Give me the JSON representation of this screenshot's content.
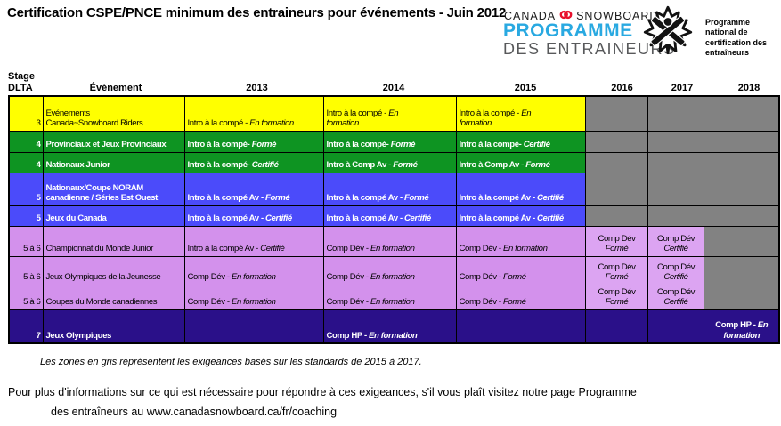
{
  "title": "Certification CSPE/PNCE minimum des entraineurs pour événements - Juin 2012",
  "logo": {
    "brand_left": "CANADA",
    "brand_right": "SNOWBOARD",
    "programme": "PROGRAMME",
    "des_entraineurs": "DES ENTRAINEURS",
    "cac_lines": [
      "Programme",
      "national de",
      "certification des",
      "entraîneurs"
    ]
  },
  "colors": {
    "yellow": "#FFFF00",
    "green": "#0E9422",
    "blue": "#4B4BFA",
    "violet": "#D391EC",
    "violet_light": "#DCA4F2",
    "navy": "#2A1089",
    "gray": "#828282",
    "brand_blue": "#29A9E1",
    "brand_gray": "#58595B",
    "brand_red": "#E8112D"
  },
  "table": {
    "headers": {
      "stage": "Stage",
      "dlta": "DLTA",
      "event": "Événement",
      "years": [
        "2013",
        "2014",
        "2015",
        "2016",
        "2017",
        "2018"
      ]
    },
    "rows": [
      {
        "color": "yellow",
        "stage": "3",
        "event": [
          "Événements",
          "Canada~Snowboard Riders"
        ],
        "cells": [
          {
            "parts": [
              {
                "t": "Intro à la compé - "
              },
              {
                "t": "En formation",
                "it": true
              }
            ]
          },
          {
            "parts": [
              {
                "t": "Intro à la compé - "
              },
              {
                "t": "En",
                "it": true
              },
              {
                "br": true
              },
              {
                "t": "formation",
                "it": true
              }
            ]
          },
          {
            "parts": [
              {
                "t": "Intro à la compé - "
              },
              {
                "t": "En",
                "it": true
              },
              {
                "br": true
              },
              {
                "t": "formation",
                "it": true
              }
            ]
          },
          {
            "bg": "gray"
          },
          {
            "bg": "gray"
          },
          {
            "bg": "gray"
          }
        ]
      },
      {
        "color": "green",
        "stage": "4",
        "event": [
          "Provinciaux et Jeux Provinciaux"
        ],
        "cells": [
          {
            "parts": [
              {
                "t": "Intro à la compé- "
              },
              {
                "t": "Formé",
                "it": true
              }
            ]
          },
          {
            "parts": [
              {
                "t": "Intro à la compé- "
              },
              {
                "t": "Formé",
                "it": true
              }
            ]
          },
          {
            "parts": [
              {
                "t": "Intro à la compé- "
              },
              {
                "t": "Certifié",
                "it": true
              }
            ]
          },
          {
            "bg": "gray"
          },
          {
            "bg": "gray"
          },
          {
            "bg": "gray"
          }
        ]
      },
      {
        "color": "green",
        "stage": "4",
        "event": [
          "Nationaux Junior"
        ],
        "cells": [
          {
            "parts": [
              {
                "t": "Intro à la compé- "
              },
              {
                "t": "Certifié",
                "it": true
              }
            ]
          },
          {
            "parts": [
              {
                "t": "Intro à Comp Av - "
              },
              {
                "t": "Formé",
                "it": true
              }
            ]
          },
          {
            "parts": [
              {
                "t": "Intro à Comp Av - "
              },
              {
                "t": "Formé",
                "it": true
              }
            ]
          },
          {
            "bg": "gray"
          },
          {
            "bg": "gray"
          },
          {
            "bg": "gray"
          }
        ]
      },
      {
        "color": "blue",
        "stage": "5",
        "event": [
          "Nationaux/Coupe NORAM",
          "canadienne / Séries Est Ouest"
        ],
        "cells": [
          {
            "parts": [
              {
                "t": "Intro à la compé Av - "
              },
              {
                "t": "Formé",
                "it": true
              }
            ]
          },
          {
            "parts": [
              {
                "t": "Intro à la compé Av - "
              },
              {
                "t": "Formé",
                "it": true
              }
            ]
          },
          {
            "parts": [
              {
                "t": "Intro à la compé Av - "
              },
              {
                "t": "Certifié",
                "it": true
              }
            ]
          },
          {
            "bg": "gray"
          },
          {
            "bg": "gray"
          },
          {
            "bg": "gray"
          }
        ]
      },
      {
        "color": "blue",
        "stage": "5",
        "event": [
          "Jeux du Canada"
        ],
        "cells": [
          {
            "parts": [
              {
                "t": "Intro à la compé Av - "
              },
              {
                "t": "Certifié",
                "it": true
              }
            ]
          },
          {
            "parts": [
              {
                "t": "Intro à la compé Av - "
              },
              {
                "t": "Certifié",
                "it": true
              }
            ]
          },
          {
            "parts": [
              {
                "t": "Intro à la compé Av - "
              },
              {
                "t": "Certifié",
                "it": true
              }
            ]
          },
          {
            "bg": "gray"
          },
          {
            "bg": "gray"
          },
          {
            "bg": "gray"
          }
        ]
      },
      {
        "color": "violet",
        "stage": "5 à 6",
        "event": [
          "Championnat du Monde Junior"
        ],
        "cells": [
          {
            "parts": [
              {
                "t": "Intro à la compé Av - "
              },
              {
                "t": "Certifié",
                "it": true
              }
            ]
          },
          {
            "parts": [
              {
                "t": "Comp Dév - "
              },
              {
                "t": "En formation",
                "it": true
              }
            ]
          },
          {
            "parts": [
              {
                "t": "Comp Dév - "
              },
              {
                "t": "En formation",
                "it": true
              }
            ]
          },
          {
            "bg": "violet2",
            "center": true,
            "parts": [
              {
                "t": "Comp Dév"
              },
              {
                "br": true
              },
              {
                "t": "Formé",
                "it": true
              }
            ]
          },
          {
            "bg": "violet2",
            "center": true,
            "parts": [
              {
                "t": "Comp Dév"
              },
              {
                "br": true
              },
              {
                "t": "Certifié",
                "it": true
              }
            ]
          },
          {
            "bg": "gray"
          }
        ]
      },
      {
        "color": "violet",
        "stage": "5 à 6",
        "event": [
          "Jeux Olympiques de la Jeunesse"
        ],
        "cells": [
          {
            "parts": [
              {
                "t": "Comp Dév - "
              },
              {
                "t": "En formation",
                "it": true
              }
            ]
          },
          {
            "parts": [
              {
                "t": "Comp Dév - "
              },
              {
                "t": "En formation",
                "it": true
              }
            ]
          },
          {
            "parts": [
              {
                "t": "Comp Dév - "
              },
              {
                "t": "Formé",
                "it": true
              }
            ]
          },
          {
            "bg": "violet2",
            "center": true,
            "parts": [
              {
                "t": "Comp Dév"
              },
              {
                "br": true
              },
              {
                "t": "Formé",
                "it": true
              }
            ]
          },
          {
            "bg": "violet2",
            "center": true,
            "parts": [
              {
                "t": "Comp Dév"
              },
              {
                "br": true
              },
              {
                "t": "Certifié",
                "it": true
              }
            ]
          },
          {
            "bg": "gray"
          }
        ]
      },
      {
        "color": "violet",
        "stage": "5 à 6",
        "event": [
          "Coupes du Monde canadiennes"
        ],
        "cells": [
          {
            "parts": [
              {
                "t": "Comp Dév - "
              },
              {
                "t": "En formation",
                "it": true
              }
            ]
          },
          {
            "parts": [
              {
                "t": "Comp Dév - "
              },
              {
                "t": "En formation",
                "it": true
              }
            ]
          },
          {
            "parts": [
              {
                "t": "Comp Dév - "
              },
              {
                "t": "Formé",
                "it": true
              }
            ]
          },
          {
            "bg": "violet2",
            "center": true,
            "parts": [
              {
                "t": "Comp Dév"
              },
              {
                "br": true
              },
              {
                "t": "Formé",
                "it": true
              }
            ]
          },
          {
            "bg": "violet2",
            "center": true,
            "parts": [
              {
                "t": "Comp Dév"
              },
              {
                "br": true
              },
              {
                "t": "Certifié",
                "it": true
              }
            ]
          },
          {
            "bg": "gray"
          }
        ]
      },
      {
        "color": "navy",
        "stage": "7",
        "event": [
          "Jeux Olympiques"
        ],
        "cells": [
          {},
          {
            "parts": [
              {
                "t": "Comp HP - "
              },
              {
                "t": "En formation",
                "it": true
              }
            ]
          },
          {},
          {},
          {},
          {
            "center": true,
            "parts": [
              {
                "t": "Comp HP - "
              },
              {
                "t": "En",
                "it": true
              },
              {
                "br": true
              },
              {
                "t": "formation",
                "it": true
              }
            ]
          }
        ]
      }
    ]
  },
  "note": "Les zones en gris représentent les exigeances basés sur les standards de 2015 à 2017.",
  "footer_line1": "Pour plus d'informations sur ce qui est nécessaire pour répondre à ces exigeances, s'il vous plaît visitez notre page Programme",
  "footer_line2": "des entraîneurs au www.canadasnowboard.ca/fr/coaching"
}
